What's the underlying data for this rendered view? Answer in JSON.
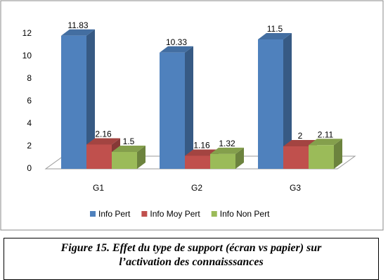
{
  "chart_data": {
    "type": "bar3d",
    "categories": [
      "G1",
      "G2",
      "G3"
    ],
    "series": [
      {
        "name": "Info Pert",
        "color": "#4f81bd",
        "values": [
          11.83,
          10.33,
          11.5
        ]
      },
      {
        "name": "Info Moy Pert",
        "color": "#c0504d",
        "values": [
          2.16,
          1.16,
          2
        ]
      },
      {
        "name": "Info Non Pert",
        "color": "#9bbb59",
        "values": [
          1.5,
          1.32,
          2.11
        ]
      }
    ],
    "ylim": [
      0,
      12
    ],
    "yticks": [
      0,
      2,
      4,
      6,
      8,
      10,
      12
    ],
    "grid": false,
    "legend": "bottom"
  },
  "caption": "Figure 15. Effet du type de support  (écran vs papier) sur l’activation des connaisssances"
}
